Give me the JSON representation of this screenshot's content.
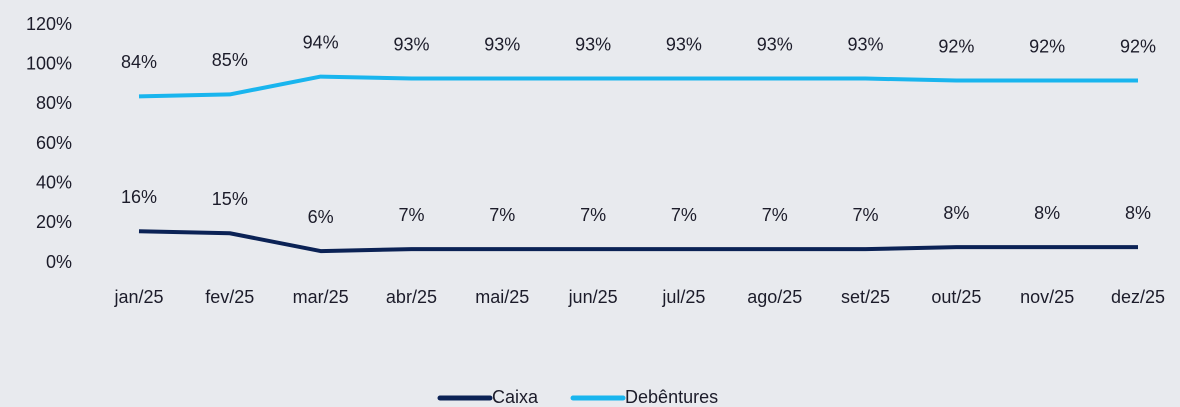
{
  "chart_data": {
    "type": "line",
    "categories": [
      "jan/25",
      "fev/25",
      "mar/25",
      "abr/25",
      "mai/25",
      "jun/25",
      "jul/25",
      "ago/25",
      "set/25",
      "out/25",
      "nov/25",
      "dez/25"
    ],
    "series": [
      {
        "name": "Caixa",
        "color": "#0b2255",
        "values": [
          16,
          15,
          6,
          7,
          7,
          7,
          7,
          7,
          7,
          8,
          8,
          8
        ],
        "value_labels": [
          "16%",
          "15%",
          "6%",
          "7%",
          "7%",
          "7%",
          "7%",
          "7%",
          "7%",
          "8%",
          "8%",
          "8%"
        ]
      },
      {
        "name": "Debêntures",
        "color": "#19b5ee",
        "values": [
          84,
          85,
          94,
          93,
          93,
          93,
          93,
          93,
          93,
          92,
          92,
          92
        ],
        "value_labels": [
          "84%",
          "85%",
          "94%",
          "93%",
          "93%",
          "93%",
          "93%",
          "93%",
          "93%",
          "92%",
          "92%",
          "92%"
        ]
      }
    ],
    "ylim": [
      0,
      120
    ],
    "yticks": [
      {
        "value": 0,
        "label": "0%"
      },
      {
        "value": 20,
        "label": "20%"
      },
      {
        "value": 40,
        "label": "40%"
      },
      {
        "value": 60,
        "label": "60%"
      },
      {
        "value": 80,
        "label": "80%"
      },
      {
        "value": 100,
        "label": "100%"
      },
      {
        "value": 120,
        "label": "120%"
      }
    ],
    "grid": false,
    "legend": "bottom"
  }
}
